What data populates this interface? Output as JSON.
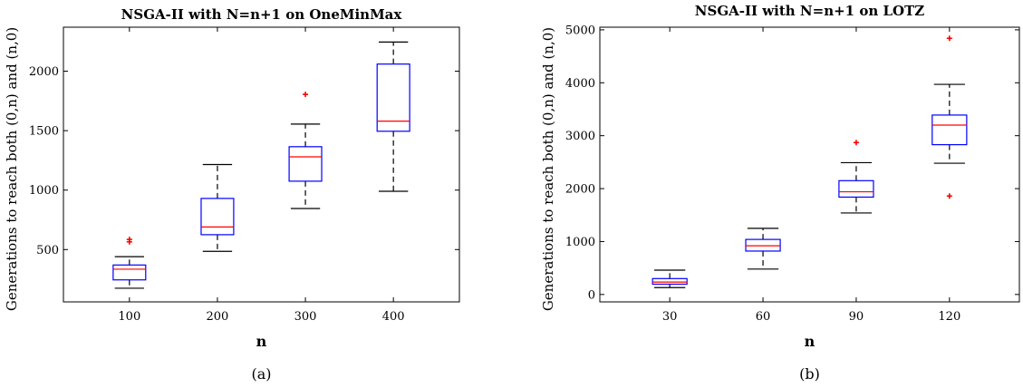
{
  "chart_data": [
    {
      "type": "boxplot",
      "title": "NSGA-II with N=n+1 on OneMinMax",
      "xlabel": "n",
      "ylabel": "Generations to reach both (0,n) and (n,0)",
      "caption": "(a)",
      "categories": [
        "100",
        "200",
        "300",
        "400"
      ],
      "ylim": [
        60,
        2370
      ],
      "yticks": [
        500,
        1000,
        1500,
        2000
      ],
      "ytick_labels": [
        "500",
        "1000",
        "1500",
        "2000"
      ],
      "boxes": [
        {
          "category": "100",
          "whisker_low": 175,
          "q1": 245,
          "median": 335,
          "q3": 370,
          "whisker_high": 440,
          "outliers": [
            565,
            585
          ]
        },
        {
          "category": "200",
          "whisker_low": 485,
          "q1": 625,
          "median": 690,
          "q3": 930,
          "whisker_high": 1215,
          "outliers": []
        },
        {
          "category": "300",
          "whisker_low": 845,
          "q1": 1075,
          "median": 1280,
          "q3": 1365,
          "whisker_high": 1555,
          "outliers": [
            1805
          ]
        },
        {
          "category": "400",
          "whisker_low": 990,
          "q1": 1495,
          "median": 1580,
          "q3": 2060,
          "whisker_high": 2245,
          "outliers": []
        }
      ],
      "colors": {
        "box": "#0000ff",
        "median": "#ff0000",
        "whisker": "#000000",
        "outlier": "#ff0000"
      }
    },
    {
      "type": "boxplot",
      "title": "NSGA-II with N=n+1 on LOTZ",
      "xlabel": "n",
      "ylabel": "Generations to reach both (0,n) and (n,0)",
      "caption": "(b)",
      "categories": [
        "30",
        "60",
        "90",
        "120"
      ],
      "ylim": [
        -140,
        5050
      ],
      "yticks": [
        0,
        1000,
        2000,
        3000,
        4000,
        5000
      ],
      "ytick_labels": [
        "0",
        "1000",
        "2000",
        "3000",
        "4000",
        "5000"
      ],
      "boxes": [
        {
          "category": "30",
          "whisker_low": 130,
          "q1": 195,
          "median": 235,
          "q3": 300,
          "whisker_high": 460,
          "outliers": []
        },
        {
          "category": "60",
          "whisker_low": 480,
          "q1": 820,
          "median": 920,
          "q3": 1040,
          "whisker_high": 1250,
          "outliers": []
        },
        {
          "category": "90",
          "whisker_low": 1540,
          "q1": 1840,
          "median": 1940,
          "q3": 2150,
          "whisker_high": 2490,
          "outliers": [
            2870
          ]
        },
        {
          "category": "120",
          "whisker_low": 2480,
          "q1": 2830,
          "median": 3200,
          "q3": 3390,
          "whisker_high": 3970,
          "outliers": [
            4840,
            1860
          ]
        }
      ],
      "colors": {
        "box": "#0000ff",
        "median": "#ff0000",
        "whisker": "#000000",
        "outlier": "#ff0000"
      }
    }
  ]
}
